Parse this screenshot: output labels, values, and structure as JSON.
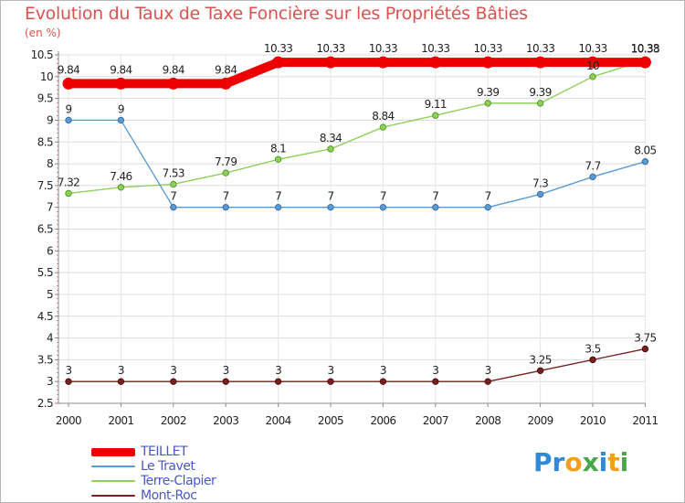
{
  "title": "Evolution du Taux de Taxe Foncière sur les Propriétés Bâties",
  "subtitle": "(en %)",
  "brand": {
    "letters": [
      {
        "ch": "P",
        "color": "#2e8ad8"
      },
      {
        "ch": "r",
        "color": "#2e8ad8"
      },
      {
        "ch": "o",
        "color": "#f0a020"
      },
      {
        "ch": "x",
        "color": "#4aa84a"
      },
      {
        "ch": "i",
        "color": "#2e8ad8"
      },
      {
        "ch": "t",
        "color": "#f0a020"
      },
      {
        "ch": "i",
        "color": "#4aa84a"
      }
    ]
  },
  "chart_data": {
    "type": "line",
    "title": "Evolution du Taux de Taxe Foncière sur les Propriétés Bâties",
    "ylabel": "(en %)",
    "xlabel": "",
    "categories": [
      "2000",
      "2001",
      "2002",
      "2003",
      "2004",
      "2005",
      "2006",
      "2007",
      "2008",
      "2009",
      "2010",
      "2011"
    ],
    "yticks": [
      "2.5",
      "3",
      "3.5",
      "4",
      "4.5",
      "5",
      "5.5",
      "6",
      "6.5",
      "7",
      "7.5",
      "8",
      "8.5",
      "9",
      "9.5",
      "10",
      "10.5"
    ],
    "ylim": [
      2.5,
      10.5
    ],
    "legend_position": "bottom-left",
    "series": [
      {
        "name": "TEILLET",
        "color": "#ee0000",
        "values": [
          9.84,
          9.84,
          9.84,
          9.84,
          10.33,
          10.33,
          10.33,
          10.33,
          10.33,
          10.33,
          10.33,
          10.33
        ],
        "labels": [
          "9.84",
          "9.84",
          "9.84",
          "9.84",
          "10.33",
          "10.33",
          "10.33",
          "10.33",
          "10.33",
          "10.33",
          "10.33",
          "10.33"
        ]
      },
      {
        "name": "Le Travet",
        "color": "#5b9bd5",
        "values": [
          9,
          9,
          7,
          7,
          7,
          7,
          7,
          7,
          7,
          7.3,
          7.7,
          8.05
        ],
        "labels": [
          "9",
          "9",
          "7",
          "7",
          "7",
          "7",
          "7",
          "7",
          "7",
          "7.3",
          "7.7",
          "8.05"
        ]
      },
      {
        "name": "Terre-Clapier",
        "color": "#8ed05a",
        "values": [
          7.32,
          7.46,
          7.53,
          7.79,
          8.1,
          8.34,
          8.84,
          9.11,
          9.39,
          9.39,
          10,
          10.38
        ],
        "labels": [
          "7.32",
          "7.46",
          "7.53",
          "7.79",
          "8.1",
          "8.34",
          "8.84",
          "9.11",
          "9.39",
          "9.39",
          "10",
          "10.38"
        ]
      },
      {
        "name": "Mont-Roc",
        "color": "#7a1f1f",
        "values": [
          3,
          3,
          3,
          3,
          3,
          3,
          3,
          3,
          3,
          3.25,
          3.5,
          3.75
        ],
        "labels": [
          "3",
          "3",
          "3",
          "3",
          "3",
          "3",
          "3",
          "3",
          "3",
          "3.25",
          "3.5",
          "3.75"
        ]
      }
    ]
  }
}
